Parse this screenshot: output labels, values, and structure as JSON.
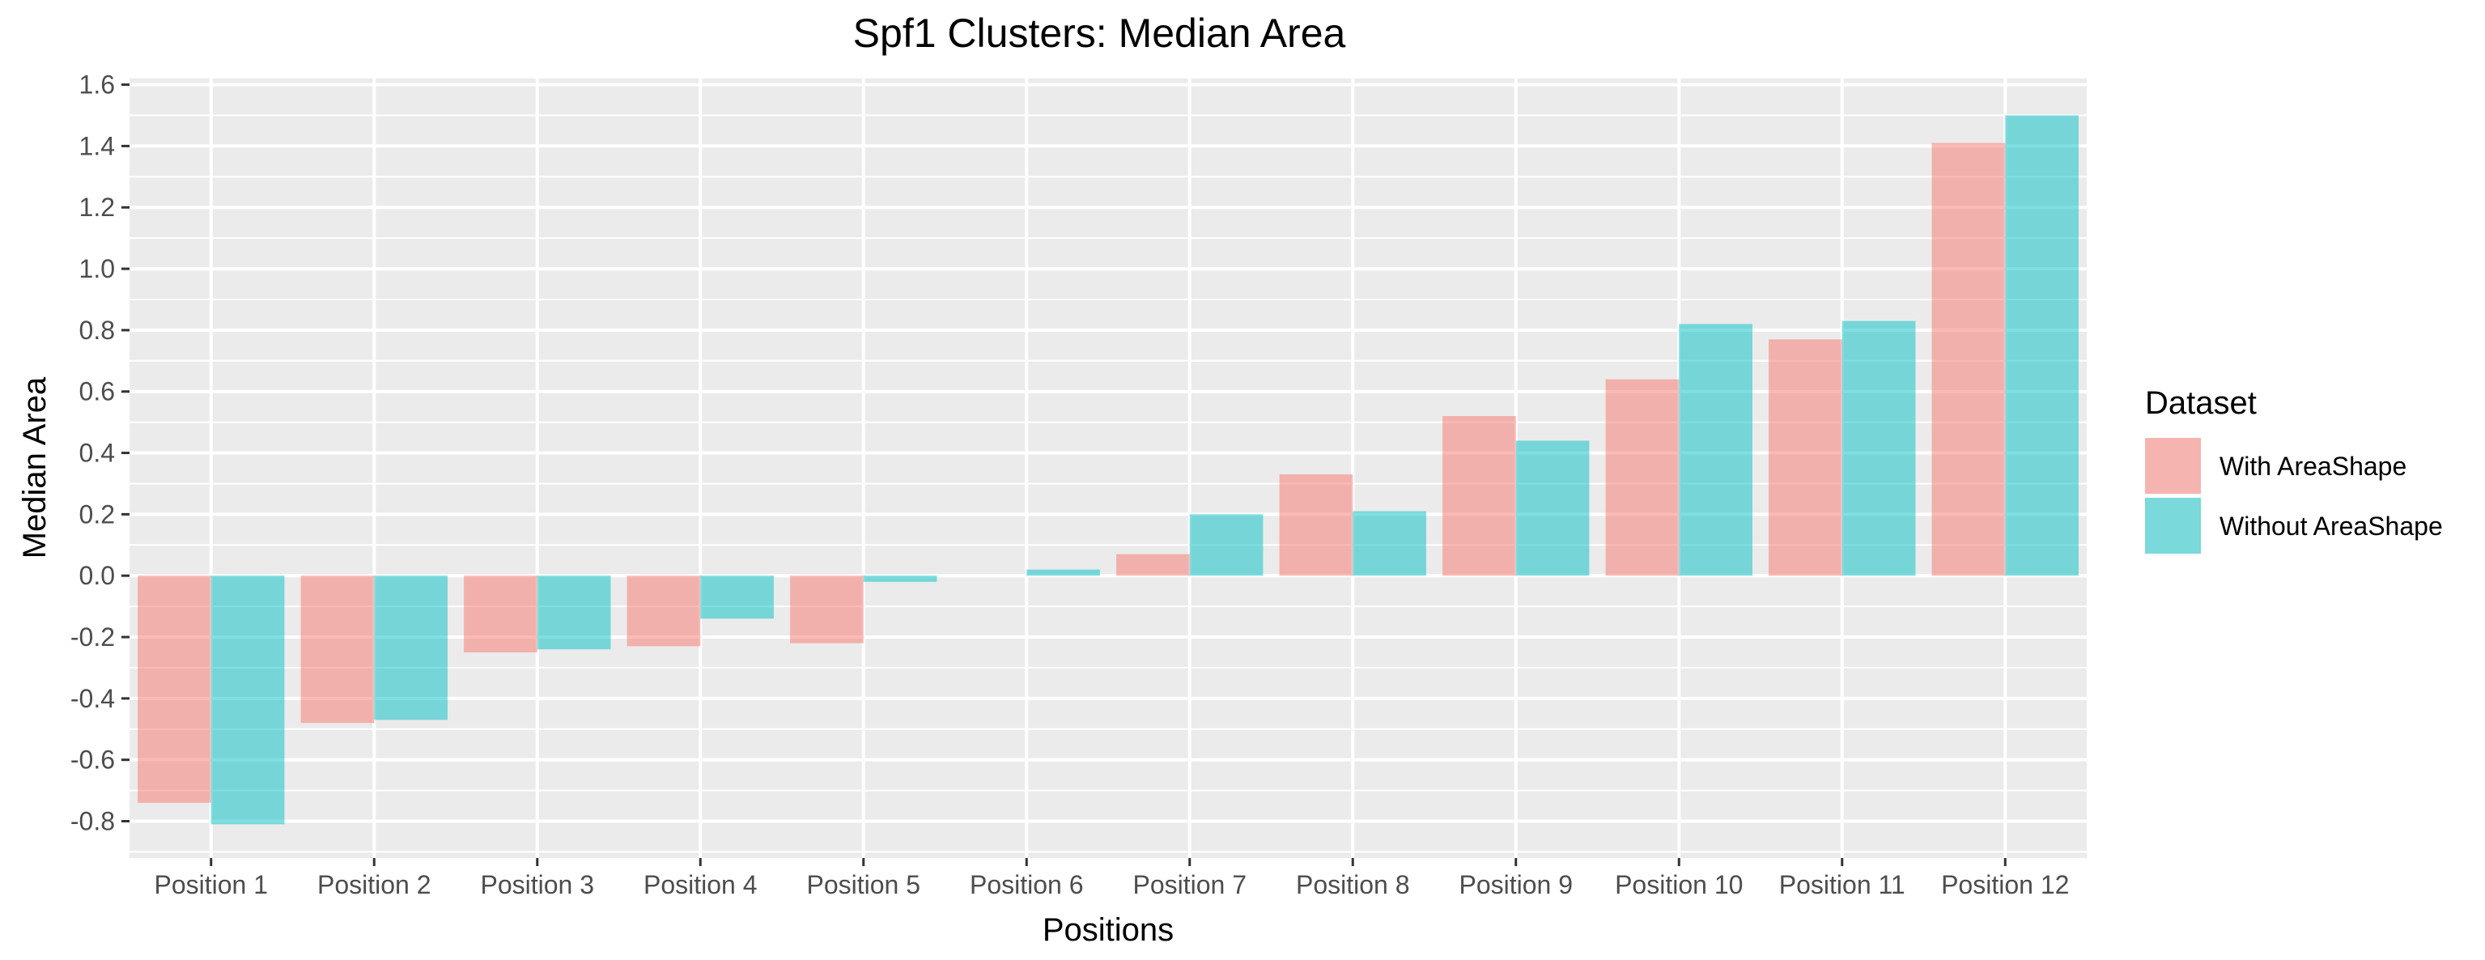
{
  "chart_data": {
    "type": "bar",
    "title": "Spf1 Clusters: Median Area",
    "xlabel": "Positions",
    "ylabel": "Median Area",
    "categories": [
      "Position 1",
      "Position 2",
      "Position 3",
      "Position 4",
      "Position 5",
      "Position 6",
      "Position 7",
      "Position 8",
      "Position 9",
      "Position 10",
      "Position 11",
      "Position 12"
    ],
    "ylim": [
      -0.92,
      1.62
    ],
    "yticks": [
      -0.8,
      -0.6,
      -0.4,
      -0.2,
      0.0,
      0.2,
      0.4,
      0.6,
      0.8,
      1.0,
      1.2,
      1.4,
      1.6
    ],
    "ytick_labels": [
      "-0.8",
      "-0.6",
      "-0.4",
      "-0.2",
      "0.0",
      "0.2",
      "0.4",
      "0.6",
      "0.8",
      "1.0",
      "1.2",
      "1.4",
      "1.6"
    ],
    "grid": true,
    "legend": {
      "title": "Dataset",
      "placement": "right"
    },
    "series": [
      {
        "name": "With AreaShape",
        "color": "#F8766D",
        "values": [
          -0.74,
          -0.48,
          -0.25,
          -0.23,
          -0.22,
          null,
          0.07,
          0.33,
          0.52,
          0.64,
          0.77,
          1.41
        ]
      },
      {
        "name": "Without AreaShape",
        "color": "#00BFC4",
        "values": [
          -0.81,
          -0.47,
          -0.24,
          -0.14,
          -0.02,
          0.02,
          0.2,
          0.21,
          0.44,
          0.82,
          0.83,
          1.5
        ]
      }
    ]
  },
  "colors": {
    "panel": "#EBEBEB",
    "grid": "#FFFFFF",
    "text": "#4D4D4D",
    "title": "#000000"
  }
}
